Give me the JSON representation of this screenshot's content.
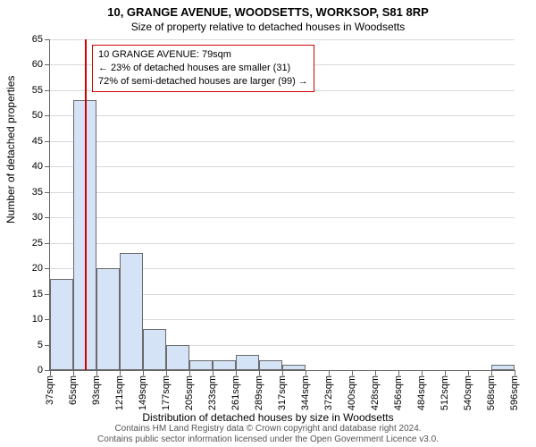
{
  "title": "10, GRANGE AVENUE, WOODSETTS, WORKSOP, S81 8RP",
  "subtitle": "Size of property relative to detached houses in Woodsetts",
  "y_axis_title": "Number of detached properties",
  "x_axis_title": "Distribution of detached houses by size in Woodsetts",
  "chart": {
    "type": "histogram",
    "ylim": [
      0,
      65
    ],
    "ytick_step": 5,
    "x_labels": [
      "37sqm",
      "65sqm",
      "93sqm",
      "121sqm",
      "149sqm",
      "177sqm",
      "205sqm",
      "233sqm",
      "261sqm",
      "289sqm",
      "317sqm",
      "344sqm",
      "372sqm",
      "400sqm",
      "428sqm",
      "456sqm",
      "484sqm",
      "512sqm",
      "540sqm",
      "568sqm",
      "596sqm"
    ],
    "values": [
      18,
      53,
      20,
      23,
      8,
      5,
      2,
      2,
      3,
      2,
      1,
      0,
      0,
      0,
      0,
      0,
      0,
      0,
      0,
      1
    ],
    "bar_fill": "#d5e3f7",
    "bar_border": "#6a6a6a",
    "grid_color": "#d9d9d9",
    "axis_color": "#666666",
    "background_color": "#ffffff",
    "marker_color": "#d00000",
    "marker_bin_index": 1,
    "marker_fraction_in_bin": 0.5
  },
  "annotation": {
    "line1": "10 GRANGE AVENUE: 79sqm",
    "line2": "← 23% of detached houses are smaller (31)",
    "line3": "72% of semi-detached houses are larger (99) →"
  },
  "footer": {
    "line1": "Contains HM Land Registry data © Crown copyright and database right 2024.",
    "line2": "Contains public sector information licensed under the Open Government Licence v3.0."
  }
}
